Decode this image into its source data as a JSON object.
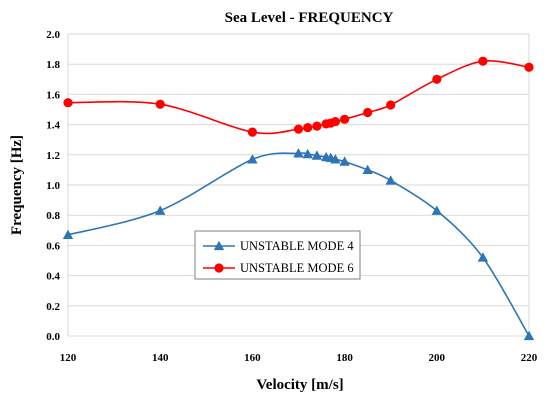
{
  "chart_data": {
    "type": "line",
    "title": "Sea Level - FREQUENCY",
    "xlabel": "Velocity [m/s]",
    "ylabel": "Frequency [Hz]",
    "xlim": [
      120,
      220
    ],
    "ylim": [
      0.0,
      2.0
    ],
    "xticks": [
      120,
      140,
      160,
      180,
      200,
      220
    ],
    "yticks": [
      0.0,
      0.2,
      0.4,
      0.6,
      0.8,
      1.0,
      1.2,
      1.4,
      1.6,
      1.8,
      2.0
    ],
    "ytick_labels": [
      "0.0",
      "0.2",
      "0.4",
      "0.6",
      "0.8",
      "1.0",
      "1.2",
      "1.4",
      "1.6",
      "1.8",
      "2.0"
    ],
    "grid": true,
    "legend_position": "lower-center",
    "series": [
      {
        "name": "UNSTABLE MODE 4",
        "color": "#2e75b6",
        "marker": "triangle",
        "x": [
          120,
          140,
          160,
          170,
          172,
          174,
          176,
          177,
          178,
          180,
          185,
          190,
          200,
          210,
          220
        ],
        "y": [
          0.67,
          0.83,
          1.17,
          1.21,
          1.205,
          1.195,
          1.185,
          1.18,
          1.17,
          1.155,
          1.1,
          1.03,
          0.83,
          0.52,
          0.0
        ]
      },
      {
        "name": "UNSTABLE MODE 6",
        "color": "#ff0000",
        "marker": "circle",
        "x": [
          120,
          140,
          160,
          170,
          172,
          174,
          176,
          177,
          178,
          180,
          185,
          190,
          200,
          210,
          220
        ],
        "y": [
          1.545,
          1.535,
          1.35,
          1.37,
          1.38,
          1.39,
          1.405,
          1.41,
          1.42,
          1.435,
          1.48,
          1.53,
          1.7,
          1.82,
          1.78
        ]
      }
    ]
  }
}
